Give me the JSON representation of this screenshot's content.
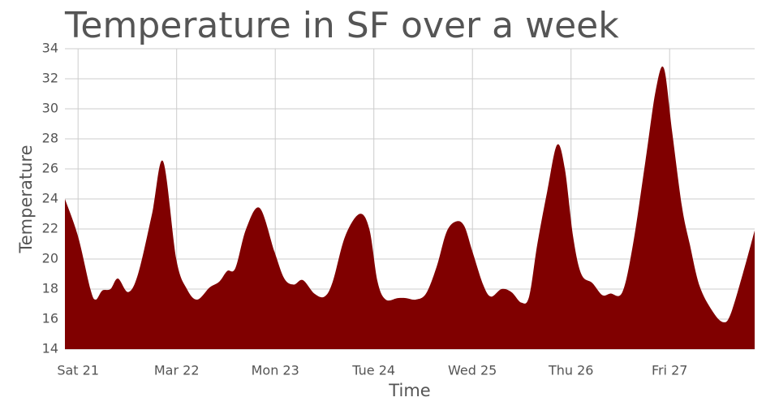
{
  "chart_data": {
    "type": "area",
    "title": "Temperature in SF over a week",
    "x_label": "Time",
    "y_label": "Temperature",
    "color": "#800000",
    "grid": true,
    "x": [
      -3.2,
      0,
      3.0,
      4.3,
      5.9,
      7.9,
      9.7,
      12.2,
      14.6,
      18.0,
      20.7,
      23.9,
      26.5,
      29.0,
      32.0,
      34.4,
      36.3,
      38.3,
      40.9,
      44.2,
      47.8,
      50.2,
      52.5,
      54.7,
      57.5,
      60.0,
      62.0,
      65.0,
      68.5,
      70.9,
      72.9,
      74.9,
      77.8,
      79.8,
      82.2,
      84.7,
      87.3,
      89.7,
      92.0,
      94.0,
      96.0,
      98.6,
      100.5,
      103.1,
      105.5,
      107.9,
      109.8,
      111.8,
      114.2,
      116.6,
      118.5,
      120.5,
      122.5,
      125.2,
      127.6,
      129.6,
      132.5,
      135.1,
      138.1,
      140.6,
      142.6,
      144.6,
      147.0,
      148.9,
      151.3,
      154.5,
      157.0,
      158.8,
      161.8,
      164.7
    ],
    "values": [
      24,
      21.5,
      18,
      17.3,
      17.9,
      18.0,
      18.7,
      17.8,
      19.0,
      23.0,
      26.5,
      20.0,
      18.0,
      17.3,
      18.1,
      18.5,
      19.2,
      19.4,
      22,
      23.4,
      20.5,
      18.7,
      18.3,
      18.6,
      17.7,
      17.5,
      18.5,
      21.5,
      23.0,
      22.0,
      18.5,
      17.3,
      17.4,
      17.4,
      17.3,
      17.7,
      19.5,
      21.8,
      22.5,
      22.2,
      20.5,
      18.3,
      17.5,
      18.0,
      17.8,
      17.1,
      17.5,
      21,
      24.5,
      27.6,
      26.0,
      21.5,
      19.0,
      18.4,
      17.6,
      17.7,
      17.8,
      21,
      26.5,
      31.2,
      32.7,
      28.5,
      23.5,
      21.0,
      18.2,
      16.5,
      15.8,
      16.3,
      19.0,
      21.9
    ],
    "xlim": [
      -3.2,
      164.7
    ],
    "xticks": [
      {
        "value": 0,
        "label": "Sat 21"
      },
      {
        "value": 24,
        "label": "Mar 22"
      },
      {
        "value": 48,
        "label": "Mon 23"
      },
      {
        "value": 72,
        "label": "Tue 24"
      },
      {
        "value": 96,
        "label": "Wed 25"
      },
      {
        "value": 120,
        "label": "Thu 26"
      },
      {
        "value": 144,
        "label": "Fri 27"
      }
    ],
    "ylim": [
      14,
      34
    ],
    "yticks": [
      14,
      16,
      18,
      20,
      22,
      24,
      26,
      28,
      30,
      32,
      34
    ]
  }
}
